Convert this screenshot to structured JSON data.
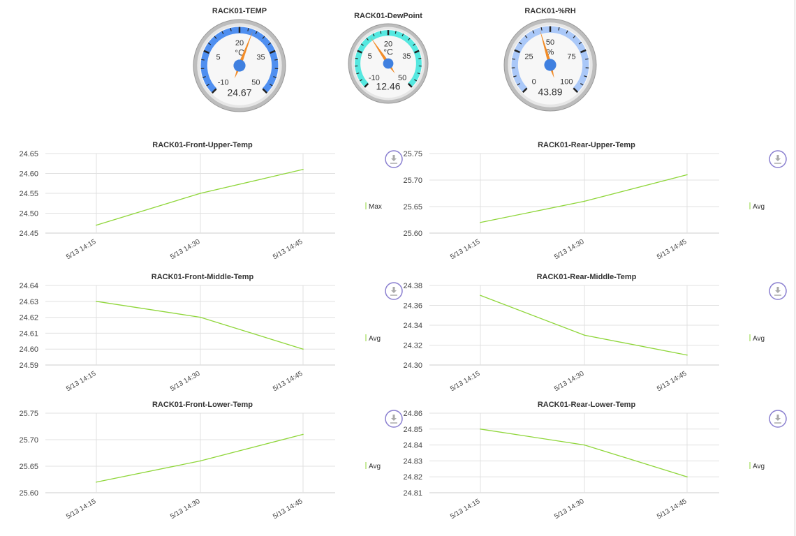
{
  "gauges": [
    {
      "title": "RACK01-TEMP",
      "unit": "°C",
      "value": 24.67,
      "value_label": "24.67",
      "min": -10,
      "max": 50,
      "ticks": [
        "-10",
        "5",
        "20",
        "35",
        "50"
      ],
      "band_color": "#4f8ff0"
    },
    {
      "title": "RACK01-DewPoint",
      "unit": "°C",
      "value": 12.46,
      "value_label": "12.46",
      "min": -10,
      "max": 50,
      "ticks": [
        "-10",
        "5",
        "20",
        "35",
        "50"
      ],
      "band_color": "#55e8e0"
    },
    {
      "title": "RACK01-%RH",
      "unit": "%",
      "value": 43.89,
      "value_label": "43.89",
      "min": 0,
      "max": 100,
      "ticks": [
        "0",
        "25",
        "50",
        "75",
        "100"
      ],
      "band_color": "#aac8f8"
    }
  ],
  "colors": {
    "needle": "#f28c28",
    "hub": "#3f80e0",
    "line": "#8fd63a",
    "download_ring": "#8a7fd0"
  },
  "chart_data": [
    {
      "type": "line",
      "title": "RACK01-Front-Upper-Temp",
      "x": [
        "5/13 14:15",
        "5/13 14:30",
        "5/13 14:45"
      ],
      "series": [
        {
          "name": "Max",
          "values": [
            24.47,
            24.55,
            24.61
          ]
        }
      ],
      "yticks": [
        "24.45",
        "24.50",
        "24.55",
        "24.60",
        "24.65"
      ],
      "ylim": [
        24.45,
        24.65
      ],
      "grid": true,
      "legend": "right"
    },
    {
      "type": "line",
      "title": "RACK01-Rear-Upper-Temp",
      "x": [
        "5/13 14:15",
        "5/13 14:30",
        "5/13 14:45"
      ],
      "series": [
        {
          "name": "Avg",
          "values": [
            25.62,
            25.66,
            25.71
          ]
        }
      ],
      "yticks": [
        "25.60",
        "25.65",
        "25.70",
        "25.75"
      ],
      "ylim": [
        25.6,
        25.75
      ],
      "grid": true,
      "legend": "right"
    },
    {
      "type": "line",
      "title": "RACK01-Front-Middle-Temp",
      "x": [
        "5/13 14:15",
        "5/13 14:30",
        "5/13 14:45"
      ],
      "series": [
        {
          "name": "Avg",
          "values": [
            24.63,
            24.62,
            24.6
          ]
        }
      ],
      "yticks": [
        "24.59",
        "24.60",
        "24.61",
        "24.62",
        "24.63",
        "24.64"
      ],
      "ylim": [
        24.59,
        24.64
      ],
      "grid": true,
      "legend": "right"
    },
    {
      "type": "line",
      "title": "RACK01-Rear-Middle-Temp",
      "x": [
        "5/13 14:15",
        "5/13 14:30",
        "5/13 14:45"
      ],
      "series": [
        {
          "name": "Avg",
          "values": [
            24.37,
            24.33,
            24.31
          ]
        }
      ],
      "yticks": [
        "24.30",
        "24.32",
        "24.34",
        "24.36",
        "24.38"
      ],
      "ylim": [
        24.3,
        24.38
      ],
      "grid": true,
      "legend": "right"
    },
    {
      "type": "line",
      "title": "RACK01-Front-Lower-Temp",
      "x": [
        "5/13 14:15",
        "5/13 14:30",
        "5/13 14:45"
      ],
      "series": [
        {
          "name": "Avg",
          "values": [
            25.62,
            25.66,
            25.71
          ]
        }
      ],
      "yticks": [
        "25.60",
        "25.65",
        "25.70",
        "25.75"
      ],
      "ylim": [
        25.6,
        25.75
      ],
      "grid": true,
      "legend": "right"
    },
    {
      "type": "line",
      "title": "RACK01-Rear-Lower-Temp",
      "x": [
        "5/13 14:15",
        "5/13 14:30",
        "5/13 14:45"
      ],
      "series": [
        {
          "name": "Avg",
          "values": [
            24.85,
            24.84,
            24.82
          ]
        }
      ],
      "yticks": [
        "24.81",
        "24.82",
        "24.83",
        "24.84",
        "24.85",
        "24.86"
      ],
      "ylim": [
        24.81,
        24.86
      ],
      "grid": true,
      "legend": "right"
    }
  ],
  "download_icon": "download-icon"
}
